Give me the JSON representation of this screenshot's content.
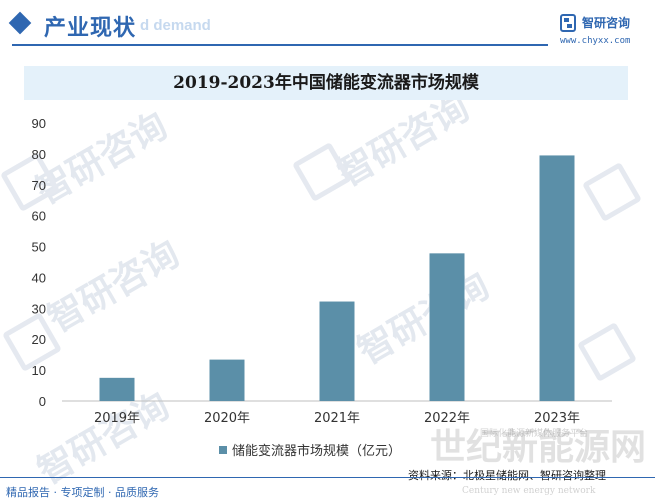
{
  "header": {
    "section_title": "产业现状",
    "watermark_text": "d demand"
  },
  "brand": {
    "name": "智研咨询",
    "url": "www.chyxx.com"
  },
  "chart_data": {
    "type": "bar",
    "title": "2019-2023年中国储能变流器市场规模",
    "categories": [
      "2019年",
      "2020年",
      "2021年",
      "2022年",
      "2023年"
    ],
    "series": [
      {
        "name": "储能变流器市场规模（亿元）",
        "values": [
          7.5,
          13.4,
          32.2,
          47.8,
          79.5
        ],
        "color": "#5b8fa8"
      }
    ],
    "ylim": [
      0,
      90
    ],
    "yticks": [
      0,
      10,
      20,
      30,
      40,
      50,
      60,
      70,
      80,
      90
    ],
    "xlabel": "",
    "ylabel": "",
    "grid": false,
    "legend_position": "bottom"
  },
  "footer": {
    "left_text": "精品报告 · 专项定制 · 品质服务",
    "source": "资料来源：北极星储能网、智研咨询整理"
  },
  "watermarks": {
    "brand": "智研咨询",
    "big": "世纪新能源网",
    "big_sub": "Century new energy network",
    "small": "国际化能源新媒体服务平台"
  },
  "colors": {
    "accent": "#2f67b1",
    "bar": "#5b8fa8",
    "title_band": "#e4f1fa"
  }
}
